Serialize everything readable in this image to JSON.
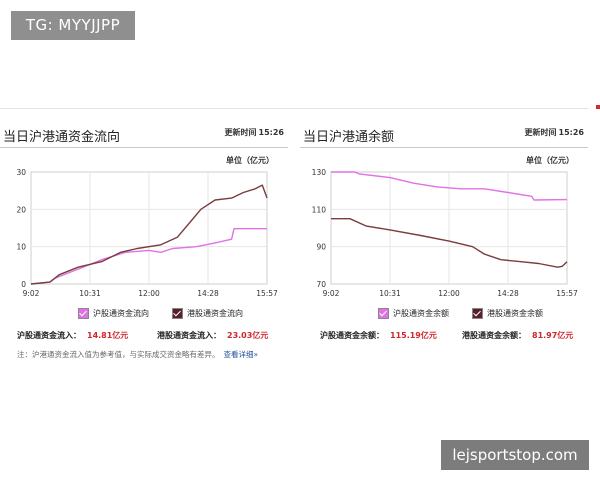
{
  "watermark_top": "TG: MYYJJPP",
  "watermark_bottom": "lejsportstop.com",
  "chart_data": [
    {
      "type": "line",
      "title": "当日沪港通资金流向",
      "update_label": "更新时间",
      "update_time": "15:26",
      "unit": "单位（亿元）",
      "x_ticks": [
        "9:02",
        "10:31",
        "12:00",
        "14:28",
        "15:57"
      ],
      "ylim": [
        0,
        30
      ],
      "y_ticks": [
        0,
        10,
        20,
        30
      ],
      "grid": true,
      "legend_position": "bottom",
      "series": [
        {
          "name": "沪股通资金流向",
          "color": "#e271e6",
          "points": [
            [
              0,
              0
            ],
            [
              0.08,
              0.5
            ],
            [
              0.1,
              1.5
            ],
            [
              0.2,
              4
            ],
            [
              0.3,
              6.5
            ],
            [
              0.4,
              8.5
            ],
            [
              0.5,
              9
            ],
            [
              0.55,
              8.5
            ],
            [
              0.6,
              9.5
            ],
            [
              0.7,
              10
            ],
            [
              0.78,
              11
            ],
            [
              0.85,
              12
            ],
            [
              0.86,
              14.8
            ],
            [
              1,
              14.81
            ]
          ]
        },
        {
          "name": "港股通资金流向",
          "color": "#7a3d3d",
          "points": [
            [
              0,
              0
            ],
            [
              0.08,
              0.5
            ],
            [
              0.12,
              2.5
            ],
            [
              0.2,
              4.5
            ],
            [
              0.3,
              6
            ],
            [
              0.38,
              8.5
            ],
            [
              0.45,
              9.5
            ],
            [
              0.55,
              10.5
            ],
            [
              0.62,
              12.5
            ],
            [
              0.68,
              17
            ],
            [
              0.72,
              20
            ],
            [
              0.78,
              22.5
            ],
            [
              0.85,
              23
            ],
            [
              0.9,
              24.5
            ],
            [
              0.95,
              25.5
            ],
            [
              0.98,
              26.5
            ],
            [
              1,
              23.03
            ]
          ]
        }
      ],
      "stats": [
        {
          "label": "沪股通资金流入：",
          "value": "14.81亿元"
        },
        {
          "label": "港股通资金流入：",
          "value": "23.03亿元"
        }
      ],
      "note": "注：沪港通资金流入值为参考值，与实际成交资金略有差异。",
      "note_link": "查看详细»"
    },
    {
      "type": "line",
      "title": "当日沪港通余额",
      "update_label": "更新时间",
      "update_time": "15:26",
      "unit": "单位（亿元）",
      "x_ticks": [
        "9:02",
        "10:31",
        "12:00",
        "14:28",
        "15:57"
      ],
      "ylim": [
        70,
        130
      ],
      "y_ticks": [
        70,
        90,
        110,
        130
      ],
      "grid": true,
      "legend_position": "bottom",
      "series": [
        {
          "name": "沪股通资金余额",
          "color": "#e271e6",
          "points": [
            [
              0,
              130
            ],
            [
              0.1,
              130
            ],
            [
              0.12,
              129
            ],
            [
              0.25,
              127
            ],
            [
              0.35,
              124
            ],
            [
              0.45,
              122
            ],
            [
              0.55,
              121
            ],
            [
              0.65,
              121
            ],
            [
              0.75,
              119
            ],
            [
              0.85,
              117
            ],
            [
              0.86,
              115
            ],
            [
              1,
              115.19
            ]
          ]
        },
        {
          "name": "港股通资金余额",
          "color": "#7a3d3d",
          "points": [
            [
              0,
              105
            ],
            [
              0.08,
              105
            ],
            [
              0.15,
              101
            ],
            [
              0.25,
              99
            ],
            [
              0.38,
              96
            ],
            [
              0.5,
              93
            ],
            [
              0.6,
              90
            ],
            [
              0.65,
              86
            ],
            [
              0.72,
              83
            ],
            [
              0.8,
              82
            ],
            [
              0.88,
              81
            ],
            [
              0.96,
              79
            ],
            [
              0.98,
              79.5
            ],
            [
              1,
              81.97
            ]
          ]
        }
      ],
      "stats": [
        {
          "label": "沪股通资金余额：",
          "value": "115.19亿元"
        },
        {
          "label": "港股通资金余额：",
          "value": "81.97亿元"
        }
      ]
    }
  ]
}
